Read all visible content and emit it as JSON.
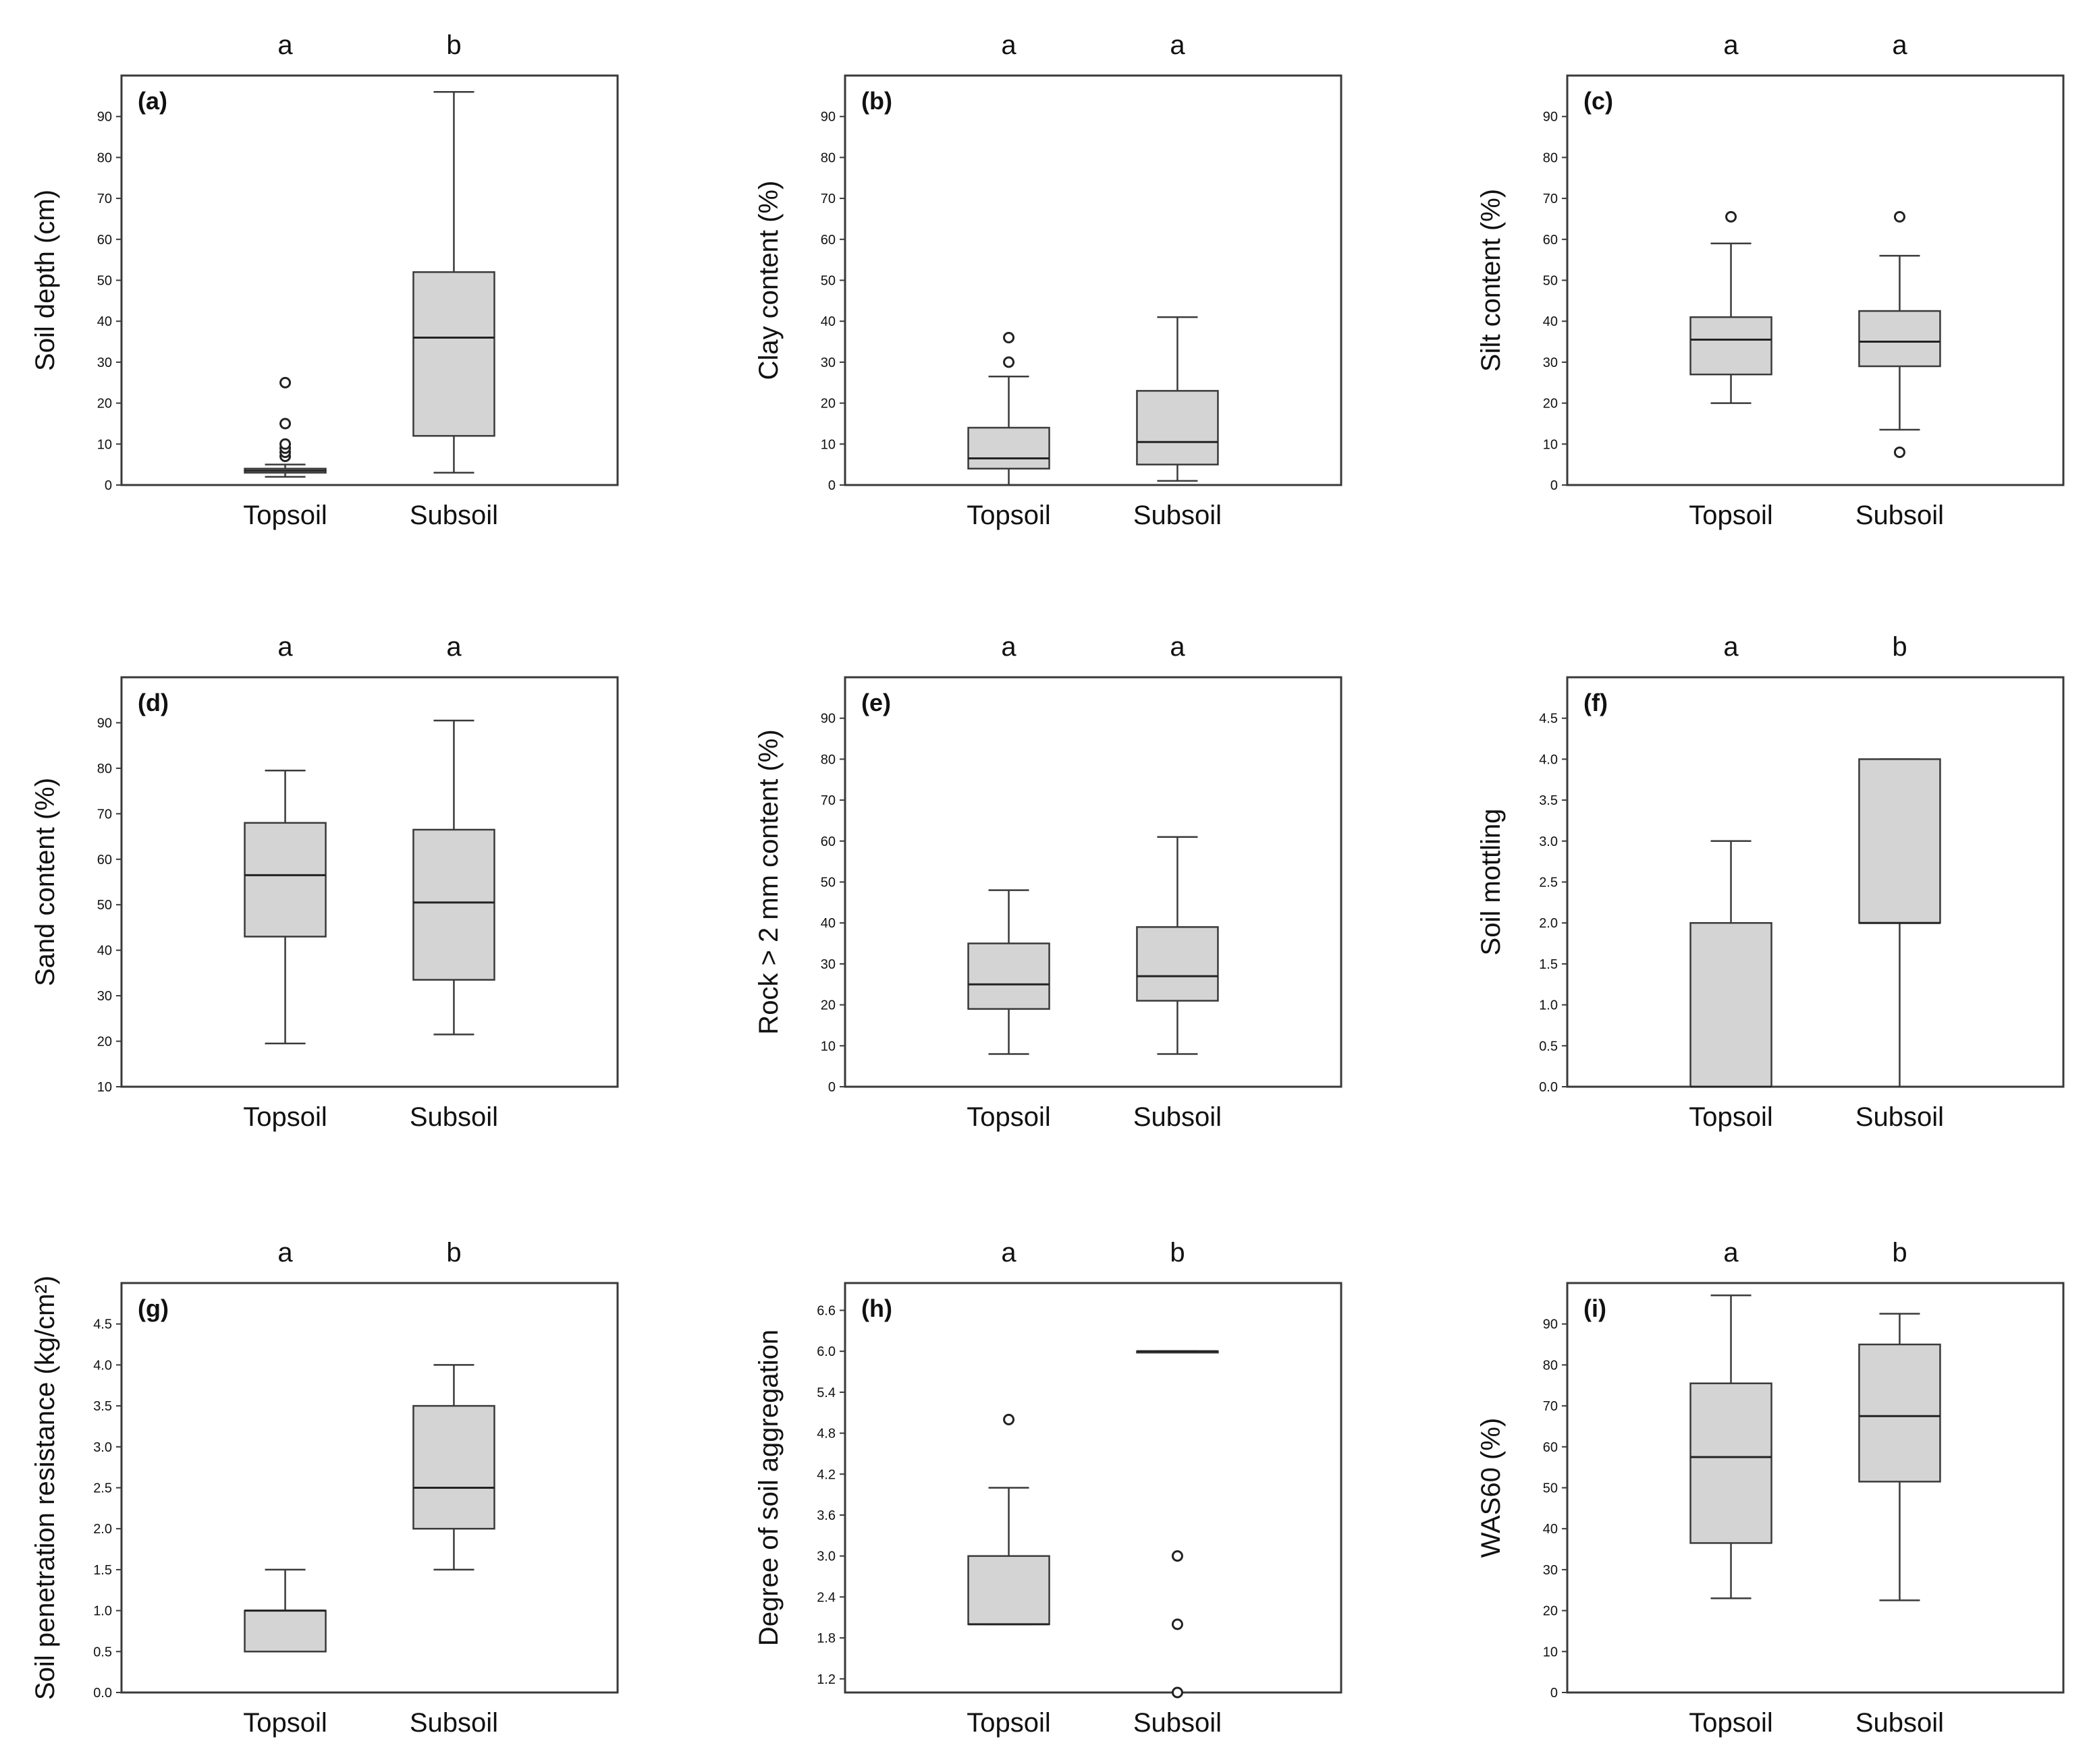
{
  "chart_data": [
    {
      "type": "boxplot",
      "panel_label": "(a)",
      "ylabel": "Soil depth (cm)",
      "ylim": [
        0,
        100
      ],
      "yticks": [
        0,
        10,
        20,
        30,
        40,
        50,
        60,
        70,
        80,
        90
      ],
      "tick_labels": [
        "0",
        "10",
        "20",
        "30",
        "40",
        "50",
        "60",
        "70",
        "80",
        "90"
      ],
      "categories": [
        "Topsoil",
        "Subsoil"
      ],
      "significance": [
        "a",
        "b"
      ],
      "boxes": [
        {
          "whislo": 2,
          "q1": 3,
          "med": 3.5,
          "q3": 4,
          "whishi": 5,
          "outliers": [
            7,
            8,
            9,
            10,
            15,
            25
          ]
        },
        {
          "whislo": 3,
          "q1": 12,
          "med": 36,
          "q3": 52,
          "whishi": 96,
          "outliers": []
        }
      ]
    },
    {
      "type": "boxplot",
      "panel_label": "(b)",
      "ylabel": "Clay content (%)",
      "ylim": [
        0,
        100
      ],
      "yticks": [
        0,
        10,
        20,
        30,
        40,
        50,
        60,
        70,
        80,
        90
      ],
      "tick_labels": [
        "0",
        "10",
        "20",
        "30",
        "40",
        "50",
        "60",
        "70",
        "80",
        "90"
      ],
      "categories": [
        "Topsoil",
        "Subsoil"
      ],
      "significance": [
        "a",
        "a"
      ],
      "boxes": [
        {
          "whislo": 0,
          "q1": 4,
          "med": 6.5,
          "q3": 14,
          "whishi": 26.5,
          "outliers": [
            30,
            36
          ]
        },
        {
          "whislo": 1,
          "q1": 5,
          "med": 10.5,
          "q3": 23,
          "whishi": 41,
          "outliers": []
        }
      ]
    },
    {
      "type": "boxplot",
      "panel_label": "(c)",
      "ylabel": "Silt content (%)",
      "ylim": [
        0,
        100
      ],
      "yticks": [
        0,
        10,
        20,
        30,
        40,
        50,
        60,
        70,
        80,
        90
      ],
      "tick_labels": [
        "0",
        "10",
        "20",
        "30",
        "40",
        "50",
        "60",
        "70",
        "80",
        "90"
      ],
      "categories": [
        "Topsoil",
        "Subsoil"
      ],
      "significance": [
        "a",
        "a"
      ],
      "boxes": [
        {
          "whislo": 20,
          "q1": 27,
          "med": 35.5,
          "q3": 41,
          "whishi": 59,
          "outliers": [
            65.5
          ]
        },
        {
          "whislo": 13.5,
          "q1": 29,
          "med": 35,
          "q3": 42.5,
          "whishi": 56,
          "outliers": [
            8,
            65.5
          ]
        }
      ]
    },
    {
      "type": "boxplot",
      "panel_label": "(d)",
      "ylabel": "Sand content (%)",
      "ylim": [
        10,
        100
      ],
      "yticks": [
        10,
        20,
        30,
        40,
        50,
        60,
        70,
        80,
        90
      ],
      "tick_labels": [
        "10",
        "20",
        "30",
        "40",
        "50",
        "60",
        "70",
        "80",
        "90"
      ],
      "categories": [
        "Topsoil",
        "Subsoil"
      ],
      "significance": [
        "a",
        "a"
      ],
      "boxes": [
        {
          "whislo": 19.5,
          "q1": 43,
          "med": 56.5,
          "q3": 68,
          "whishi": 79.5,
          "outliers": []
        },
        {
          "whislo": 21.5,
          "q1": 33.5,
          "med": 50.5,
          "q3": 66.5,
          "whishi": 90.5,
          "outliers": []
        }
      ]
    },
    {
      "type": "boxplot",
      "panel_label": "(e)",
      "ylabel": "Rock > 2 mm content (%)",
      "ylim": [
        0,
        100
      ],
      "yticks": [
        0,
        10,
        20,
        30,
        40,
        50,
        60,
        70,
        80,
        90
      ],
      "tick_labels": [
        "0",
        "10",
        "20",
        "30",
        "40",
        "50",
        "60",
        "70",
        "80",
        "90"
      ],
      "categories": [
        "Topsoil",
        "Subsoil"
      ],
      "significance": [
        "a",
        "a"
      ],
      "boxes": [
        {
          "whislo": 8,
          "q1": 19,
          "med": 25,
          "q3": 35,
          "whishi": 48,
          "outliers": []
        },
        {
          "whislo": 8,
          "q1": 21,
          "med": 27,
          "q3": 39,
          "whishi": 61,
          "outliers": []
        }
      ]
    },
    {
      "type": "boxplot",
      "panel_label": "(f)",
      "ylabel": "Soil mottling",
      "ylim": [
        0,
        5
      ],
      "yticks": [
        0,
        0.5,
        1,
        1.5,
        2,
        2.5,
        3,
        3.5,
        4,
        4.5
      ],
      "tick_labels": [
        "0.0",
        "0.5",
        "1.0",
        "1.5",
        "2.0",
        "2.5",
        "3.0",
        "3.5",
        "4.0",
        "4.5"
      ],
      "categories": [
        "Topsoil",
        "Subsoil"
      ],
      "significance": [
        "a",
        "b"
      ],
      "boxes": [
        {
          "whislo": 0,
          "q1": 0,
          "med": 0,
          "q3": 2,
          "whishi": 3,
          "outliers": []
        },
        {
          "whislo": 0,
          "q1": 2,
          "med": 2,
          "q3": 4,
          "whishi": 4,
          "outliers": []
        }
      ]
    },
    {
      "type": "boxplot",
      "panel_label": "(g)",
      "ylabel": "Soil penetration resistance (kg/cm²)",
      "ylim": [
        0,
        5
      ],
      "yticks": [
        0,
        0.5,
        1,
        1.5,
        2,
        2.5,
        3,
        3.5,
        4,
        4.5
      ],
      "tick_labels": [
        "0.0",
        "0.5",
        "1.0",
        "1.5",
        "2.0",
        "2.5",
        "3.0",
        "3.5",
        "4.0",
        "4.5"
      ],
      "categories": [
        "Topsoil",
        "Subsoil"
      ],
      "significance": [
        "a",
        "b"
      ],
      "boxes": [
        {
          "whislo": 0.5,
          "q1": 0.5,
          "med": 1,
          "q3": 1,
          "whishi": 1.5,
          "outliers": []
        },
        {
          "whislo": 1.5,
          "q1": 2,
          "med": 2.5,
          "q3": 3.5,
          "whishi": 4,
          "outliers": []
        }
      ]
    },
    {
      "type": "boxplot",
      "panel_label": "(h)",
      "ylabel": "Degree of soil aggregation",
      "ylim": [
        1,
        7
      ],
      "yticks": [
        1.2,
        1.8,
        2.4,
        3,
        3.6,
        4.2,
        4.8,
        5.4,
        6,
        6.6
      ],
      "tick_labels": [
        "1.2",
        "1.8",
        "2.4",
        "3.0",
        "3.6",
        "4.2",
        "4.8",
        "5.4",
        "6.0",
        "6.6"
      ],
      "categories": [
        "Topsoil",
        "Subsoil"
      ],
      "significance": [
        "a",
        "b"
      ],
      "boxes": [
        {
          "whislo": 2,
          "q1": 2,
          "med": 2,
          "q3": 3,
          "whishi": 4,
          "outliers": [
            5
          ]
        },
        {
          "whislo": 6,
          "q1": 6,
          "med": 6,
          "q3": 6,
          "whishi": 6,
          "outliers": [
            1,
            2,
            3
          ]
        }
      ]
    },
    {
      "type": "boxplot",
      "panel_label": "(i)",
      "ylabel": "WAS60 (%)",
      "ylim": [
        0,
        100
      ],
      "yticks": [
        0,
        10,
        20,
        30,
        40,
        50,
        60,
        70,
        80,
        90
      ],
      "tick_labels": [
        "0",
        "10",
        "20",
        "30",
        "40",
        "50",
        "60",
        "70",
        "80",
        "90"
      ],
      "categories": [
        "Topsoil",
        "Subsoil"
      ],
      "significance": [
        "a",
        "b"
      ],
      "boxes": [
        {
          "whislo": 23,
          "q1": 36.5,
          "med": 57.5,
          "q3": 75.5,
          "whishi": 97,
          "outliers": []
        },
        {
          "whislo": 22.5,
          "q1": 51.5,
          "med": 67.5,
          "q3": 85,
          "whishi": 92.5,
          "outliers": []
        }
      ]
    }
  ],
  "colors": {
    "box_fill": "#d4d4d4",
    "stroke": "#3a3a3a",
    "text": "#111111",
    "background": "#ffffff"
  }
}
